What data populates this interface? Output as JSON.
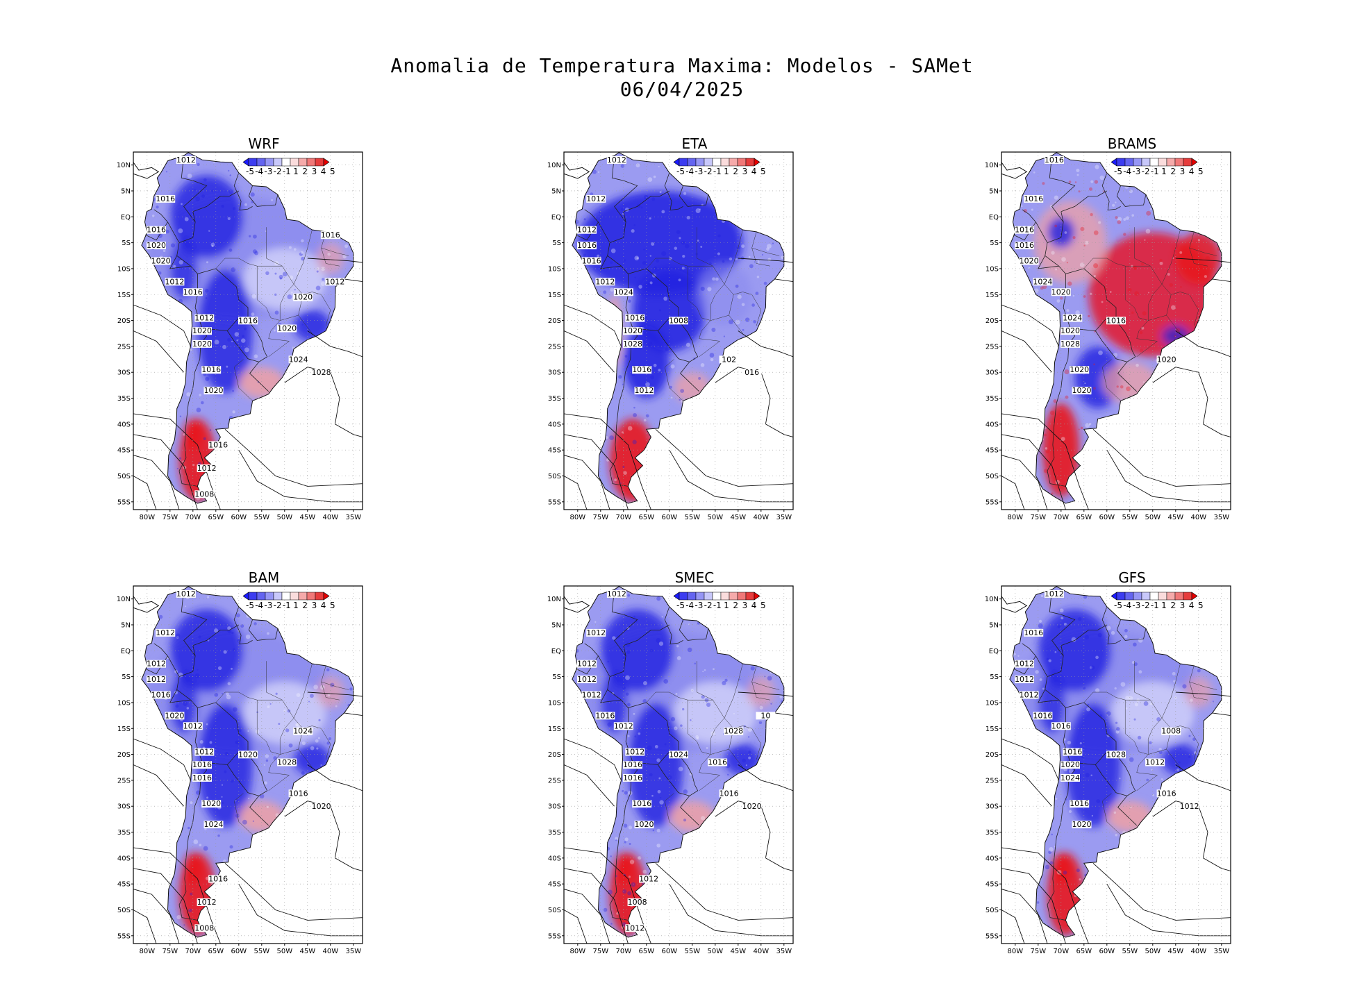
{
  "figure": {
    "title_line1": "Anomalia de Temperatura Maxima: Modelos - SAMet",
    "title_line2": "06/04/2025"
  },
  "axes": {
    "lat_labels": [
      "10N",
      "5N",
      "EQ",
      "5S",
      "10S",
      "15S",
      "20S",
      "25S",
      "30S",
      "35S",
      "40S",
      "45S",
      "50S",
      "55S"
    ],
    "lat_values": [
      10,
      5,
      0,
      -5,
      -10,
      -15,
      -20,
      -25,
      -30,
      -35,
      -40,
      -45,
      -50,
      -55
    ],
    "lon_labels": [
      "80W",
      "75W",
      "70W",
      "65W",
      "60W",
      "55W",
      "50W",
      "45W",
      "40W",
      "35W"
    ],
    "lon_values": [
      -80,
      -75,
      -70,
      -65,
      -60,
      -55,
      -50,
      -45,
      -40,
      -35
    ],
    "lat_range": [
      -56.5,
      12.5
    ],
    "lon_range": [
      -83,
      -33
    ]
  },
  "colorbar": {
    "labels": [
      "-5",
      "-4",
      "-3",
      "-2",
      "-1",
      "1",
      "2",
      "3",
      "4",
      "5"
    ],
    "colors": [
      "#1a1aff",
      "#3c3cf0",
      "#6464f0",
      "#9696f5",
      "#c8c8fa",
      "#ffffff",
      "#fadcdc",
      "#f5aaaa",
      "#f07878",
      "#e63c3c",
      "#e60000"
    ]
  },
  "colors": {
    "cold": "#2020e0",
    "cold_mid": "#8a8aee",
    "neutral": "#f4f4ff",
    "warm_mid": "#f4a0a0",
    "warm": "#e8141e",
    "gridline": "#9a9a9a"
  },
  "panels": [
    {
      "name": "WRF",
      "pressure_labels": [
        "1012",
        "1016",
        "1016",
        "1020",
        "1020",
        "1012",
        "1016",
        "1012",
        "1020",
        "1020",
        "1016",
        "1020",
        "1016",
        "1024",
        "1028",
        "1020",
        "1020",
        "1016",
        "1012",
        "1008",
        "1012",
        "1016"
      ],
      "anomaly": "cold-north-warm-south"
    },
    {
      "name": "ETA",
      "pressure_labels": [
        "1012",
        "1012",
        "1012",
        "1016",
        "1016",
        "1012",
        "1024",
        "1016",
        "1020",
        "1028",
        "1016",
        "1012",
        "1008",
        "102",
        "016"
      ],
      "anomaly": "strong-cold-warm-south"
    },
    {
      "name": "BRAMS",
      "pressure_labels": [
        "1016",
        "1016",
        "1016",
        "1016",
        "1020",
        "1024",
        "1020",
        "1024",
        "1020",
        "1028",
        "1020",
        "1020",
        "1016",
        "1020"
      ],
      "anomaly": "warm-dominant"
    },
    {
      "name": "BAM",
      "pressure_labels": [
        "1012",
        "1012",
        "1012",
        "1012",
        "1016",
        "1020",
        "1012",
        "1012",
        "1016",
        "1016",
        "1020",
        "1024",
        "1020",
        "1016",
        "1020",
        "1024",
        "1028",
        "1016",
        "1012",
        "1008"
      ],
      "anomaly": "cold-north-warm-south"
    },
    {
      "name": "SMEC",
      "pressure_labels": [
        "1012",
        "1012",
        "1012",
        "1012",
        "1012",
        "1016",
        "1012",
        "1012",
        "1016",
        "1016",
        "1016",
        "1020",
        "1024",
        "1016",
        "1020",
        "1028",
        "1016",
        "1012",
        "1008",
        "1012",
        "10"
      ],
      "anomaly": "cold-north-warm-south"
    },
    {
      "name": "GFS",
      "pressure_labels": [
        "1012",
        "1016",
        "1012",
        "1012",
        "1012",
        "1016",
        "1016",
        "1016",
        "1020",
        "1024",
        "1016",
        "1020",
        "1028",
        "1016",
        "1012",
        "1008",
        "1012"
      ],
      "anomaly": "cold-north-warm-south"
    }
  ]
}
